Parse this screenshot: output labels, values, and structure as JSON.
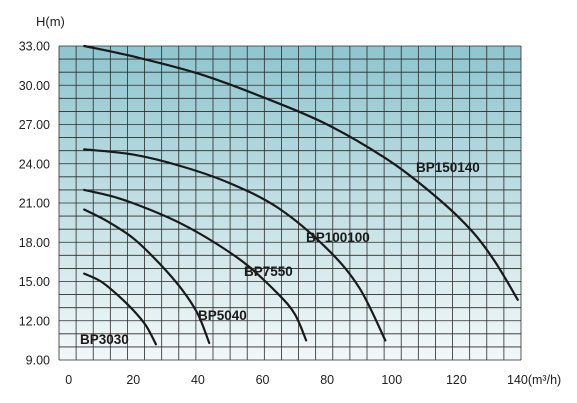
{
  "chart_data": {
    "type": "line",
    "title": "",
    "ylabel": "H(m)",
    "xlabel": "140(m³/h)",
    "xlim": [
      -3,
      140
    ],
    "ylim": [
      9,
      33
    ],
    "grid": true,
    "legend": "inline labels",
    "x_ticks": [
      {
        "value": 0,
        "label": "0"
      },
      {
        "value": 20,
        "label": "20"
      },
      {
        "value": 40,
        "label": "40"
      },
      {
        "value": 60,
        "label": "60"
      },
      {
        "value": 80,
        "label": "80"
      },
      {
        "value": 100,
        "label": "100"
      },
      {
        "value": 120,
        "label": "120"
      }
    ],
    "y_ticks": [
      {
        "value": 9,
        "label": "9.00"
      },
      {
        "value": 12,
        "label": "12.00"
      },
      {
        "value": 15,
        "label": "15.00"
      },
      {
        "value": 18,
        "label": "18.00"
      },
      {
        "value": 21,
        "label": "21.00"
      },
      {
        "value": 24,
        "label": "24.00"
      },
      {
        "value": 27,
        "label": "27.00"
      },
      {
        "value": 30,
        "label": "30.00"
      },
      {
        "value": 33,
        "label": "33.00"
      }
    ],
    "series": [
      {
        "name": "BP3030",
        "x": [
          4.8,
          10,
          15,
          20,
          24,
          27
        ],
        "y": [
          15.6,
          15.0,
          14.0,
          12.8,
          11.6,
          10.2
        ]
      },
      {
        "name": "BP5040",
        "x": [
          4.8,
          12,
          20,
          28,
          35,
          40,
          43.5
        ],
        "y": [
          20.5,
          19.6,
          18.3,
          16.4,
          14.4,
          12.5,
          10.3
        ]
      },
      {
        "name": "BP7550",
        "x": [
          4.8,
          15,
          25,
          35,
          45,
          55,
          65,
          70,
          73.5
        ],
        "y": [
          22.0,
          21.4,
          20.5,
          19.4,
          18.0,
          16.3,
          14.0,
          12.5,
          10.5
        ]
      },
      {
        "name": "BP100100",
        "x": [
          4.8,
          20,
          35,
          50,
          65,
          80,
          90,
          98
        ],
        "y": [
          25.1,
          24.7,
          23.8,
          22.5,
          20.6,
          17.5,
          14.5,
          10.5
        ]
      },
      {
        "name": "BP150140",
        "x": [
          4.8,
          20,
          40,
          60,
          80,
          100,
          115,
          125,
          132,
          139
        ],
        "y": [
          33.0,
          32.2,
          30.9,
          29.1,
          27.0,
          24.1,
          21.2,
          18.8,
          16.5,
          13.6
        ]
      }
    ]
  }
}
